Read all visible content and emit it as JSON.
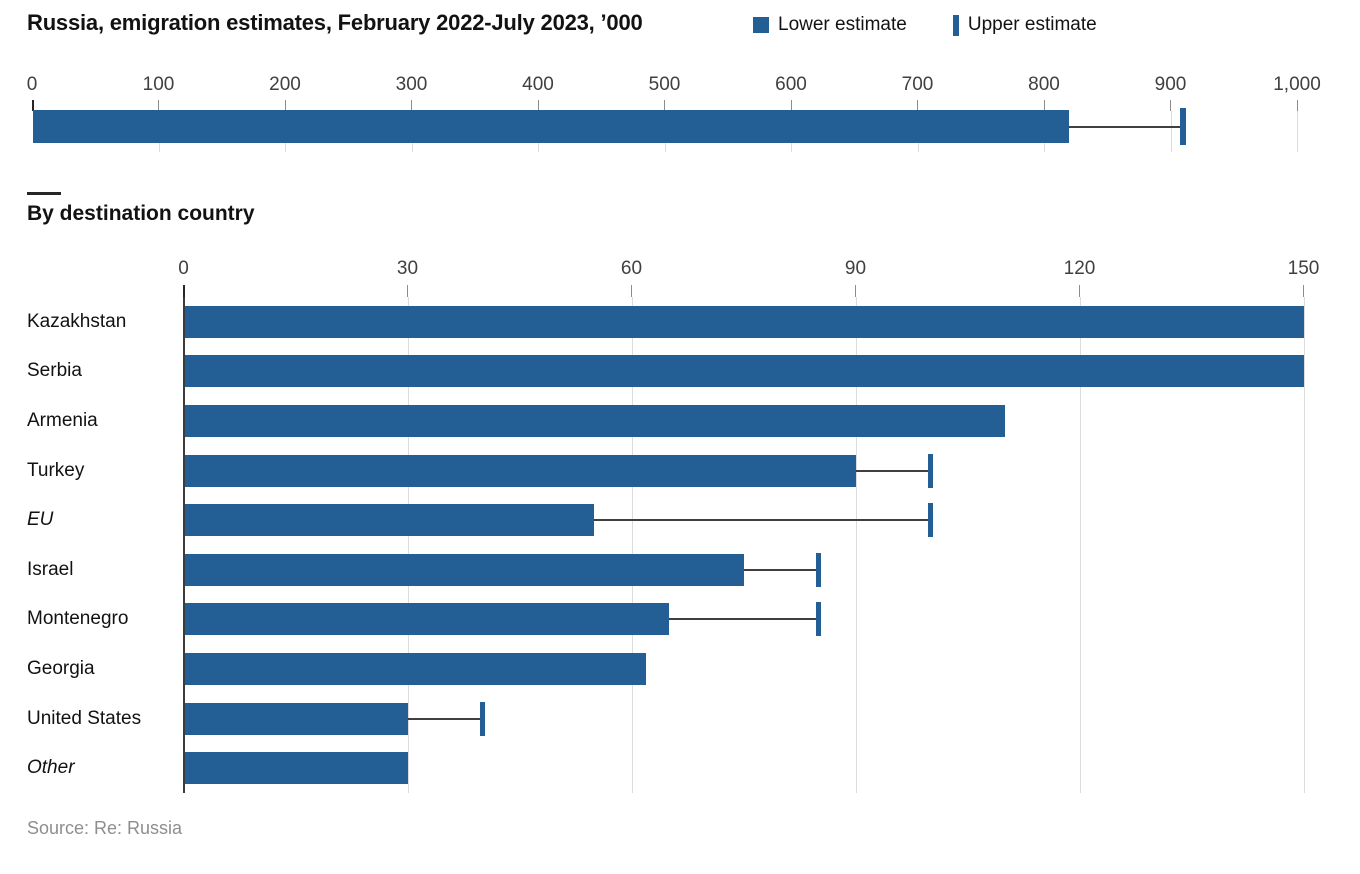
{
  "header": {
    "title": "Russia, emigration estimates, February 2022-July 2023, ’000",
    "legend": [
      {
        "label": "Lower estimate",
        "marker": "square"
      },
      {
        "label": "Upper estimate",
        "marker": "vertical-bar"
      }
    ]
  },
  "section": {
    "subtitle": "By destination country"
  },
  "footer": {
    "source": "Source: Re: Russia"
  },
  "colors": {
    "bar": "#235e94",
    "whisker": "#3f3f3f",
    "grid": "#dcdcdc",
    "tick": "#8c8c8c",
    "axis": "#3c3c3c",
    "text": "#121212",
    "axis_label": "#404040",
    "source": "#8e8e8e"
  },
  "chart_data": [
    {
      "type": "bar",
      "orientation": "horizontal",
      "title": "Russia, emigration estimates, February 2022-July 2023, ’000",
      "categories": [
        "Russia total"
      ],
      "series": [
        {
          "name": "Lower estimate",
          "values": [
            820
          ]
        },
        {
          "name": "Upper estimate",
          "values": [
            910
          ]
        }
      ],
      "xlim": [
        0,
        1000
      ],
      "xticks": [
        0,
        100,
        200,
        300,
        400,
        500,
        600,
        700,
        800,
        900,
        1000
      ],
      "grid": true,
      "legend_position": "top-right"
    },
    {
      "type": "bar",
      "orientation": "horizontal",
      "title": "By destination country",
      "categories": [
        "Kazakhstan",
        "Serbia",
        "Armenia",
        "Turkey",
        "EU",
        "Israel",
        "Montenegro",
        "Georgia",
        "United States",
        "Other"
      ],
      "italic_categories": [
        "EU",
        "Other"
      ],
      "series": [
        {
          "name": "Lower estimate",
          "values": [
            150,
            150,
            110,
            90,
            55,
            75,
            65,
            62,
            30,
            30
          ]
        },
        {
          "name": "Upper estimate",
          "values": [
            150,
            150,
            110,
            100,
            100,
            85,
            85,
            62,
            40,
            30
          ]
        }
      ],
      "xlim": [
        0,
        150
      ],
      "xticks": [
        0,
        30,
        60,
        90,
        120,
        150
      ],
      "grid": true
    }
  ]
}
